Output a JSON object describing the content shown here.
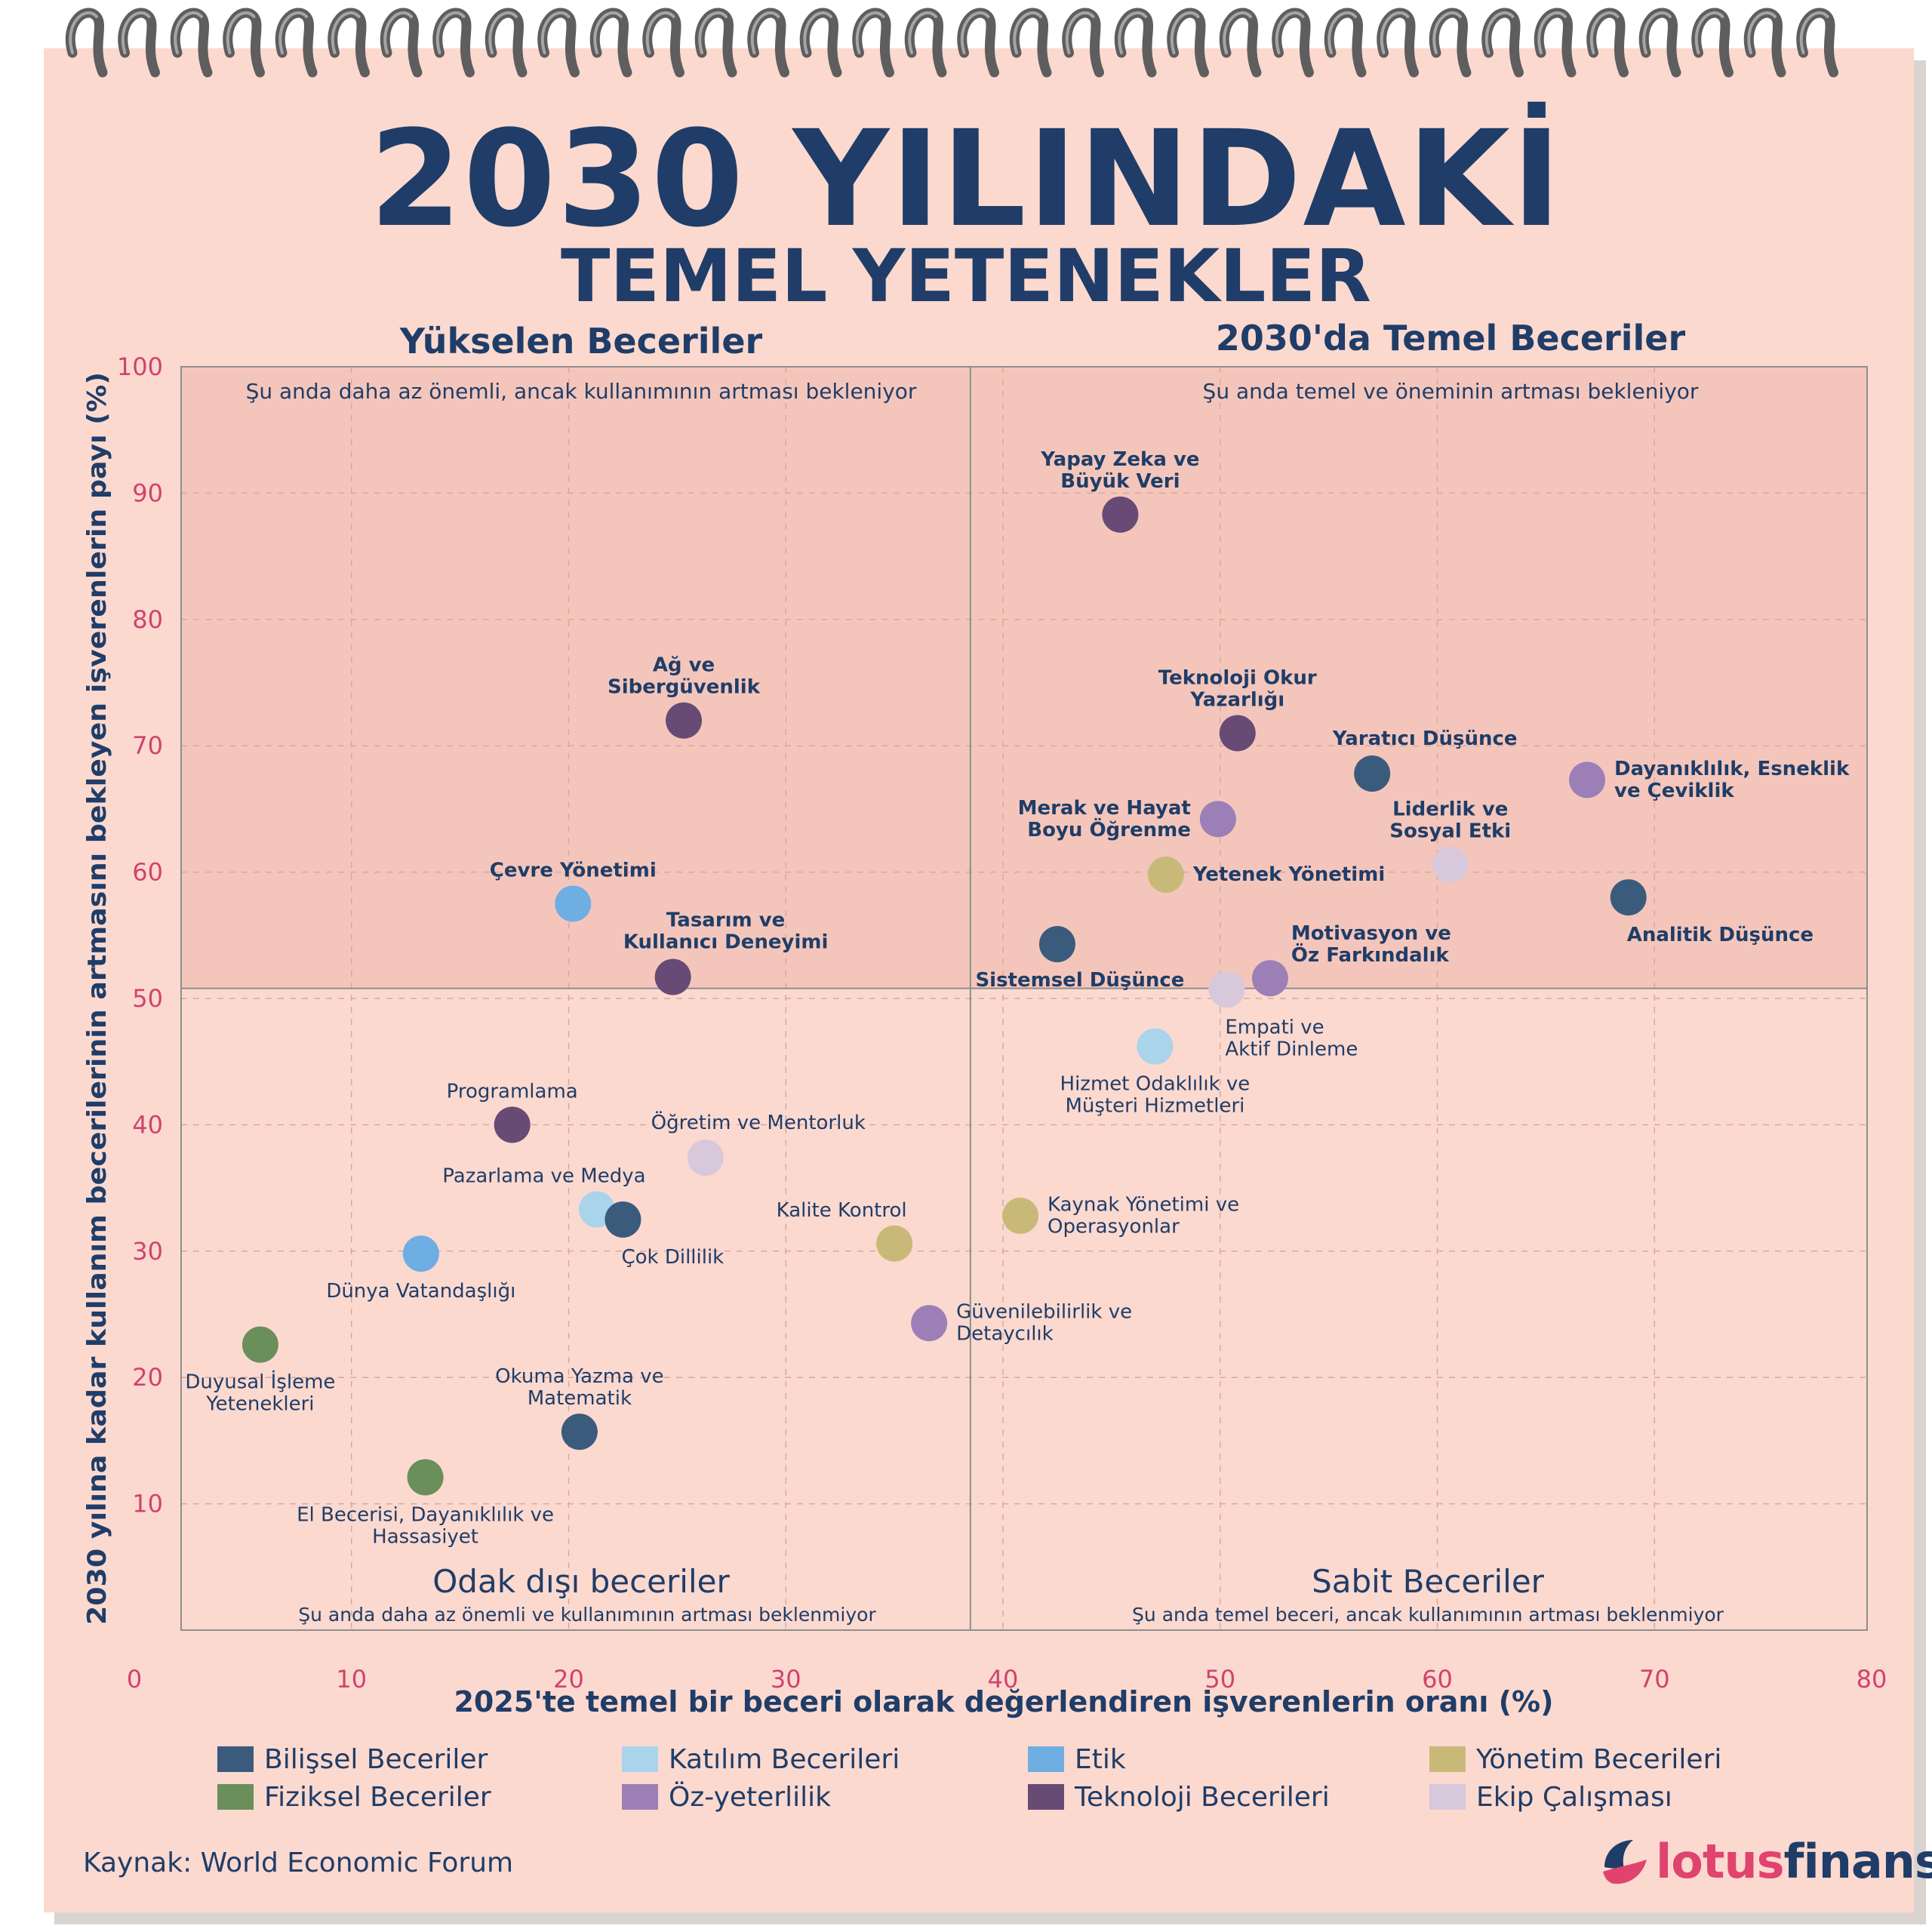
{
  "page": {
    "title_line1": "2030 YILINDAKİ",
    "title_line2": "TEMEL YETENEKLER",
    "source": "Kaynak: World Economic Forum",
    "brand_part1": "lotus",
    "brand_part2": "finans"
  },
  "colors": {
    "paper": "#fcd9cf",
    "shaded_quadrant": "#f4c6bb",
    "title": "#1f3d68",
    "tick": "#d0436e"
  },
  "legend": [
    {
      "label": "Bilişsel Beceriler",
      "color": "#3b5b7c"
    },
    {
      "label": "Katılım Becerileri",
      "color": "#a9d4ec"
    },
    {
      "label": "Etik",
      "color": "#6eaee3"
    },
    {
      "label": "Yönetim Becerileri",
      "color": "#c9b978"
    },
    {
      "label": "Fiziksel Beceriler",
      "color": "#6a8f5b"
    },
    {
      "label": "Öz-yeterlilik",
      "color": "#9d7fb8"
    },
    {
      "label": "Teknoloji Becerileri",
      "color": "#674b75"
    },
    {
      "label": "Ekip Çalışması",
      "color": "#d7c8dc"
    }
  ],
  "chart_data": {
    "type": "scatter",
    "xlabel": "2025'te temel bir beceri olarak değerlendiren işverenlerin oranı (%)",
    "ylabel": "2030 yılına kadar kullanım becerilerinin artmasını bekleyen işverenlerin payı (%)",
    "xlim": [
      0,
      80
    ],
    "ylim": [
      0,
      100
    ],
    "x_ticks": [
      0,
      10,
      20,
      30,
      40,
      50,
      60,
      70,
      80
    ],
    "y_ticks": [
      10,
      20,
      30,
      40,
      50,
      60,
      70,
      80,
      90,
      100
    ],
    "grid": true,
    "quadrant_split": {
      "x": 38.5,
      "y": 50.8
    },
    "quadrants": [
      {
        "title": "Yükselen Beceriler",
        "subtitle": "Şu anda daha az önemli, ancak kullanımının artması bekleniyor"
      },
      {
        "title": "2030'da Temel Beceriler",
        "subtitle": "Şu anda temel ve öneminin artması bekleniyor"
      },
      {
        "title": "Odak dışı beceriler",
        "subtitle": "Şu anda daha az önemli ve kullanımının artması beklenmiyor"
      },
      {
        "title": "Sabit Beceriler",
        "subtitle": "Şu anda temel beceri, ancak kullanımının artması beklenmiyor"
      }
    ],
    "points": [
      {
        "label": [
          "Yapay Zeka ve",
          "Büyük Veri"
        ],
        "x": 45.4,
        "y": 88.3,
        "cat": 6,
        "pos": "above",
        "bold": true
      },
      {
        "label": [
          "Ağ ve",
          "Sibergüvenlik"
        ],
        "x": 25.3,
        "y": 72.0,
        "cat": 6,
        "pos": "above",
        "bold": true
      },
      {
        "label": [
          "Teknoloji Okur",
          "Yazarlığı"
        ],
        "x": 50.8,
        "y": 71.0,
        "cat": 6,
        "pos": "above",
        "bold": true
      },
      {
        "label": [
          "Yaratıcı Düşünce"
        ],
        "x": 57.0,
        "y": 67.8,
        "cat": 0,
        "pos": "aboveright",
        "bold": true
      },
      {
        "label": [
          "Dayanıklılık, Esneklik",
          "ve Çeviklik"
        ],
        "x": 66.9,
        "y": 67.3,
        "cat": 5,
        "pos": "right",
        "bold": true
      },
      {
        "label": [
          "Merak ve Hayat",
          "Boyu Öğrenme"
        ],
        "x": 49.9,
        "y": 64.2,
        "cat": 5,
        "pos": "left",
        "bold": true
      },
      {
        "label": [
          "Liderlik ve",
          "Sosyal Etki"
        ],
        "x": 60.6,
        "y": 60.6,
        "cat": 7,
        "pos": "above",
        "bold": true
      },
      {
        "label": [
          "Yetenek Yönetimi"
        ],
        "x": 47.5,
        "y": 59.8,
        "cat": 3,
        "pos": "right",
        "bold": true
      },
      {
        "label": [
          "Analitik Düşünce"
        ],
        "x": 68.8,
        "y": 58.0,
        "cat": 0,
        "pos": "belowright",
        "bold": true
      },
      {
        "label": [
          "Çevre Yönetimi"
        ],
        "x": 20.2,
        "y": 57.5,
        "cat": 2,
        "pos": "above",
        "bold": true
      },
      {
        "label": [
          "Sistemsel Düşünce"
        ],
        "x": 42.5,
        "y": 54.3,
        "cat": 0,
        "pos": "belowleft",
        "bold": true
      },
      {
        "label": [
          "Tasarım ve",
          "Kullanıcı Deneyimi"
        ],
        "x": 24.8,
        "y": 51.7,
        "cat": 6,
        "pos": "aboveright",
        "bold": true
      },
      {
        "label": [
          "Motivasyon ve",
          "Öz Farkındalık"
        ],
        "x": 52.3,
        "y": 51.6,
        "cat": 5,
        "pos": "aboveright2",
        "bold": true
      },
      {
        "label": [
          "Empati ve",
          "Aktif Dinleme"
        ],
        "x": 50.3,
        "y": 50.7,
        "cat": 7,
        "pos": "belowright",
        "bold": false
      },
      {
        "label": [
          "Hizmet Odaklılık ve",
          "Müşteri Hizmetleri"
        ],
        "x": 47.0,
        "y": 46.2,
        "cat": 1,
        "pos": "below",
        "bold": false
      },
      {
        "label": [
          "Programlama"
        ],
        "x": 17.4,
        "y": 40.0,
        "cat": 6,
        "pos": "above",
        "bold": false
      },
      {
        "label": [
          "Öğretim ve Mentorluk"
        ],
        "x": 26.3,
        "y": 37.4,
        "cat": 7,
        "pos": "aboveright",
        "bold": false
      },
      {
        "label": [
          "Pazarlama ve Medya"
        ],
        "x": 21.3,
        "y": 33.3,
        "cat": 1,
        "pos": "aboveleft",
        "bold": false
      },
      {
        "label": [
          "Kaynak Yönetimi ve",
          "Operasyonlar"
        ],
        "x": 40.8,
        "y": 32.8,
        "cat": 3,
        "pos": "right",
        "bold": false
      },
      {
        "label": [
          "Çok Dillilik"
        ],
        "x": 22.5,
        "y": 32.5,
        "cat": 0,
        "pos": "belowright",
        "bold": false
      },
      {
        "label": [
          "Kalite Kontrol"
        ],
        "x": 35.0,
        "y": 30.6,
        "cat": 3,
        "pos": "aboveleft",
        "bold": false
      },
      {
        "label": [
          "Dünya Vatandaşlığı"
        ],
        "x": 13.2,
        "y": 29.8,
        "cat": 2,
        "pos": "below",
        "bold": false
      },
      {
        "label": [
          "Güvenilebilirlik ve",
          "Detaycılık"
        ],
        "x": 36.6,
        "y": 24.3,
        "cat": 5,
        "pos": "right",
        "bold": false
      },
      {
        "label": [
          "Duyusal İşleme",
          "Yetenekleri"
        ],
        "x": 5.8,
        "y": 22.6,
        "cat": 4,
        "pos": "below",
        "bold": false
      },
      {
        "label": [
          "Okuma Yazma ve",
          "Matematik"
        ],
        "x": 20.5,
        "y": 15.7,
        "cat": 0,
        "pos": "above",
        "bold": false
      },
      {
        "label": [
          "El Becerisi, Dayanıklılık ve",
          "Hassasiyet"
        ],
        "x": 13.4,
        "y": 12.1,
        "cat": 4,
        "pos": "below",
        "bold": false
      }
    ]
  }
}
